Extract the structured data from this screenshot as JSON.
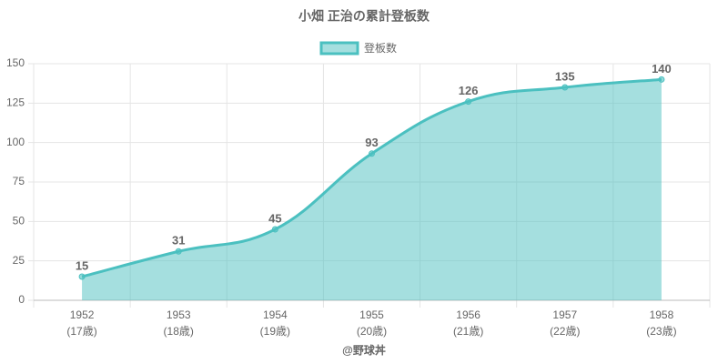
{
  "chart_data": {
    "type": "area",
    "title": "小畑 正治の累計登板数",
    "categories": [
      [
        "1952",
        "(17歳)"
      ],
      [
        "1953",
        "(18歳)"
      ],
      [
        "1954",
        "(19歳)"
      ],
      [
        "1955",
        "(20歳)"
      ],
      [
        "1956",
        "(21歳)"
      ],
      [
        "1957",
        "(22歳)"
      ],
      [
        "1958",
        "(23歳)"
      ]
    ],
    "series": [
      {
        "name": "登板数",
        "color": "#4bc0c0",
        "values": [
          15,
          31,
          45,
          93,
          126,
          135,
          140
        ]
      }
    ],
    "ylim": [
      0,
      150
    ],
    "yticks": [
      0,
      25,
      50,
      75,
      100,
      125,
      150
    ],
    "grid": true,
    "footer": "@野球丼"
  }
}
